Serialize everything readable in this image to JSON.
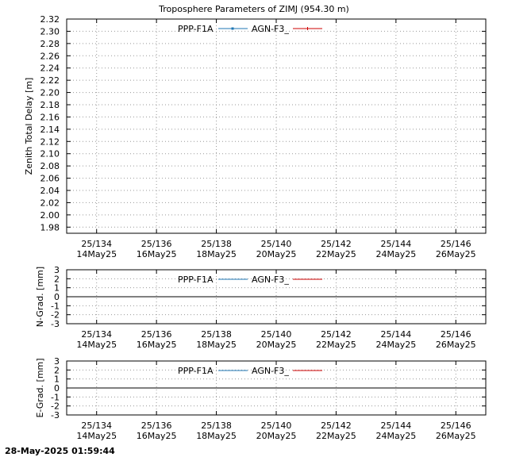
{
  "title": "Troposphere Parameters of ZIMJ (954.30 m)",
  "footer_timestamp": "28-May-2025 01:59:44",
  "colors": {
    "ppp": "#1f77b4",
    "agn": "#cc0000",
    "grid": "#999999",
    "axis": "#000000"
  },
  "chart_data": [
    {
      "type": "line",
      "ylabel": "Zenith Total Delay [m]",
      "ylim": [
        1.97,
        2.32
      ],
      "yticks": [
        1.98,
        2.0,
        2.02,
        2.04,
        2.06,
        2.08,
        2.1,
        2.12,
        2.14,
        2.16,
        2.18,
        2.2,
        2.22,
        2.24,
        2.26,
        2.28,
        2.3,
        2.32
      ],
      "ytick_labels": [
        "1.98",
        "2.00",
        "2.02",
        "2.04",
        "2.06",
        "2.08",
        "2.10",
        "2.12",
        "2.14",
        "2.16",
        "2.18",
        "2.20",
        "2.22",
        "2.24",
        "2.26",
        "2.28",
        "2.30",
        "2.32"
      ],
      "xlim": [
        133,
        147
      ],
      "xticks": [
        134,
        136,
        138,
        140,
        142,
        144,
        146
      ],
      "xtick_labels_top": [
        "25/134",
        "25/136",
        "25/138",
        "25/140",
        "25/142",
        "25/144",
        "25/146"
      ],
      "xtick_labels_bottom": [
        "14May25",
        "16May25",
        "18May25",
        "20May25",
        "22May25",
        "24May25",
        "26May25"
      ],
      "grid": true,
      "legend_position": "top-center",
      "series": [
        {
          "name": "PPP-F1A",
          "marker": "point",
          "x": [],
          "y": []
        },
        {
          "name": "AGN-F3_",
          "marker": "plus",
          "x": [],
          "y": []
        }
      ]
    },
    {
      "type": "line",
      "ylabel": "N-Grad. [mm]",
      "ylim": [
        -3,
        3
      ],
      "yticks": [
        -3,
        -2,
        -1,
        0,
        1,
        2,
        3
      ],
      "ytick_labels": [
        "-3",
        "-2",
        "-1",
        "0",
        "1",
        "2",
        "3"
      ],
      "xlim": [
        133,
        147
      ],
      "xticks": [
        134,
        136,
        138,
        140,
        142,
        144,
        146
      ],
      "xtick_labels_top": [
        "25/134",
        "25/136",
        "25/138",
        "25/140",
        "25/142",
        "25/144",
        "25/146"
      ],
      "xtick_labels_bottom": [
        "14May25",
        "16May25",
        "18May25",
        "20May25",
        "22May25",
        "24May25",
        "26May25"
      ],
      "grid": true,
      "zero_line": true,
      "legend_position": "top-center",
      "series": [
        {
          "name": "PPP-F1A",
          "marker": "none",
          "x": [],
          "y": []
        },
        {
          "name": "AGN-F3_",
          "marker": "none",
          "x": [],
          "y": []
        }
      ]
    },
    {
      "type": "line",
      "ylabel": "E-Grad. [mm]",
      "ylim": [
        -3,
        3
      ],
      "yticks": [
        -3,
        -2,
        -1,
        0,
        1,
        2,
        3
      ],
      "ytick_labels": [
        "-3",
        "-2",
        "-1",
        "0",
        "1",
        "2",
        "3"
      ],
      "xlim": [
        133,
        147
      ],
      "xticks": [
        134,
        136,
        138,
        140,
        142,
        144,
        146
      ],
      "xtick_labels_top": [
        "25/134",
        "25/136",
        "25/138",
        "25/140",
        "25/142",
        "25/144",
        "25/146"
      ],
      "xtick_labels_bottom": [
        "14May25",
        "16May25",
        "18May25",
        "20May25",
        "22May25",
        "24May25",
        "26May25"
      ],
      "grid": true,
      "zero_line": true,
      "legend_position": "top-center",
      "series": [
        {
          "name": "PPP-F1A",
          "marker": "none",
          "x": [],
          "y": []
        },
        {
          "name": "AGN-F3_",
          "marker": "none",
          "x": [],
          "y": []
        }
      ]
    }
  ]
}
